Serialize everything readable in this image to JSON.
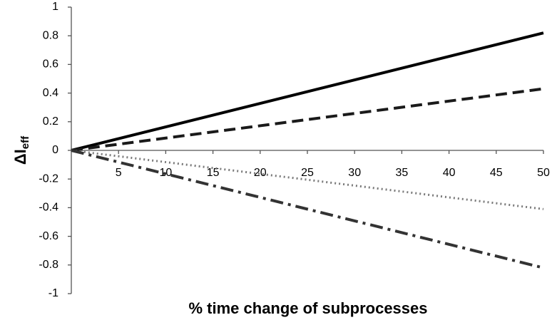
{
  "chart_data": {
    "type": "line",
    "xlabel": "% time change of subprocesses",
    "ylabel": {
      "main": "ΔI",
      "subscript": "eff"
    },
    "x": [
      0,
      50
    ],
    "series": [
      {
        "color": "#000000",
        "style": "solid",
        "values": [
          0,
          0.82
        ]
      },
      {
        "color": "#1a1a1a",
        "style": "dashed",
        "values": [
          0,
          0.43
        ]
      },
      {
        "color": "#7a7a7a",
        "style": "dotted",
        "values": [
          0,
          -0.41
        ]
      },
      {
        "color": "#333333",
        "style": "dashdot",
        "values": [
          0,
          -0.82
        ]
      }
    ],
    "xlim": [
      0,
      50
    ],
    "xticks": [
      5,
      10,
      15,
      20,
      25,
      30,
      35,
      40,
      45,
      50
    ],
    "ylim": [
      -1,
      1
    ],
    "yticks": [
      -1,
      -0.8,
      -0.6,
      -0.4,
      -0.2,
      0,
      0.2,
      0.4,
      0.6,
      0.8,
      1
    ],
    "grid": false
  }
}
